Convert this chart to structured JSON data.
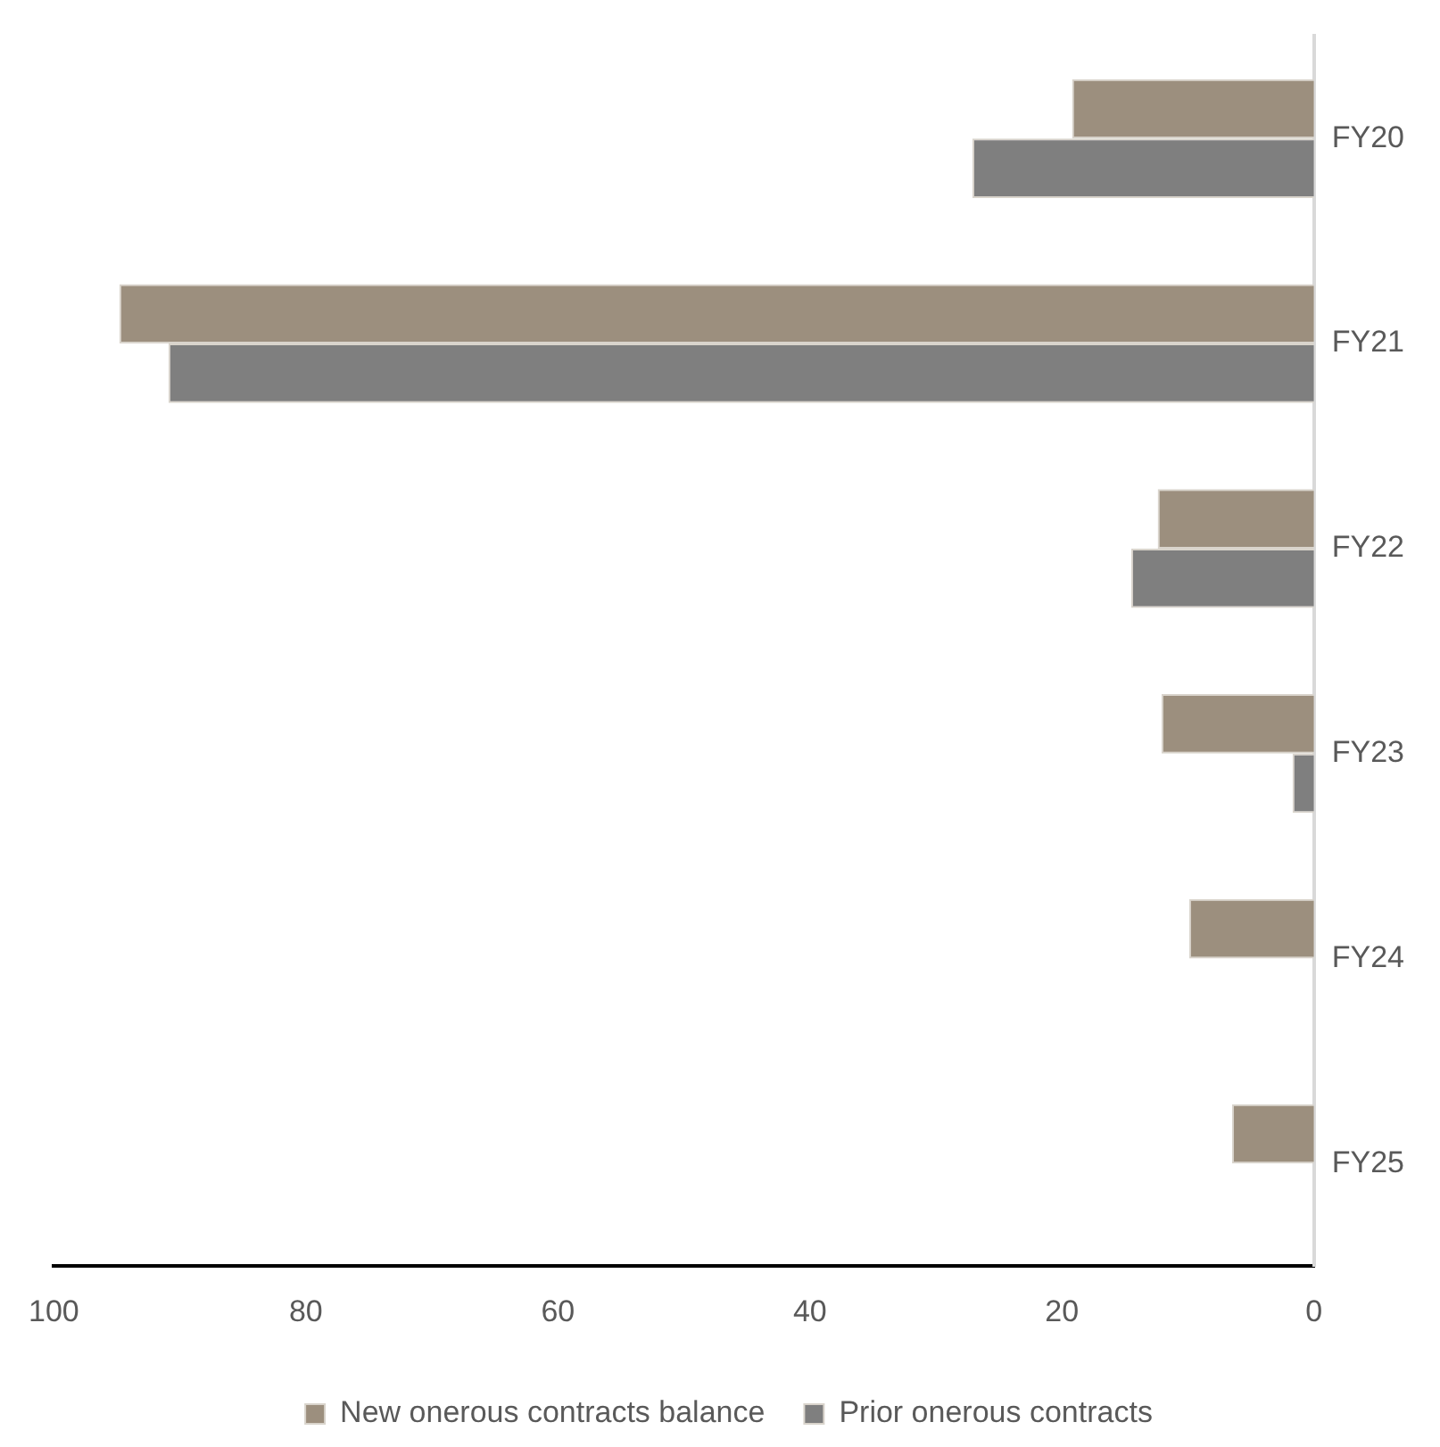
{
  "chart_data": {
    "type": "bar",
    "orientation": "horizontal",
    "categories": [
      "FY20",
      "FY21",
      "FY22",
      "FY23",
      "FY24",
      "FY25"
    ],
    "series": [
      {
        "name": "New onerous contracts balance",
        "color": "#9c8f7e",
        "values": [
          19.2,
          94.8,
          12.4,
          12.1,
          9.9,
          6.5
        ]
      },
      {
        "name": "Prior onerous contracts",
        "color": "#7f7f7f",
        "values": [
          27.1,
          90.9,
          14.5,
          1.7,
          null,
          null
        ]
      }
    ],
    "xlim": [
      100,
      0
    ],
    "xticks": [
      100,
      80,
      60,
      40,
      20,
      0
    ],
    "grid": false,
    "legend": "bottom"
  }
}
